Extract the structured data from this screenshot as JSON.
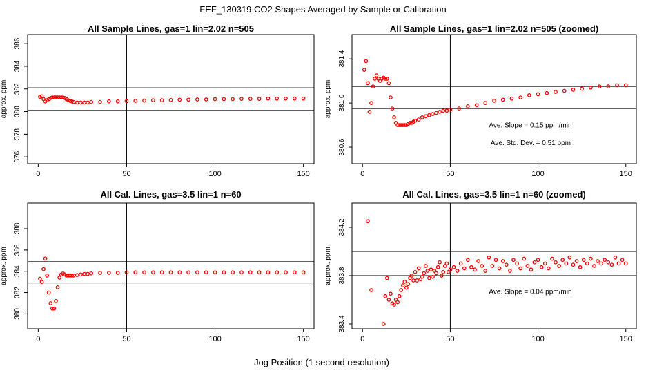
{
  "figure": {
    "title": "FEF_130319  CO2 Shapes Averaged by Sample or Calibration",
    "xlabel": "Jog Position (1 second resolution)"
  },
  "chart_data": [
    {
      "type": "scatter",
      "title": "All Sample Lines, gas=1 lin=2.02 n=505",
      "ylabel": "approx. ppm",
      "xlim": [
        -6,
        156
      ],
      "ylim": [
        375.4,
        386.8
      ],
      "xticks": [
        0,
        50,
        100,
        150
      ],
      "xtick_labels": [
        "0",
        "50",
        "100",
        "150"
      ],
      "yticks": [
        376,
        378,
        380,
        382,
        384,
        386
      ],
      "ytick_labels": [
        "376",
        "378",
        "380",
        "382",
        "384",
        "386"
      ],
      "hlines": [
        380.1,
        382.1
      ],
      "vlines": [
        50
      ],
      "annotations": [],
      "color": "#ff0000",
      "series": [
        {
          "name": "sample",
          "x": [
            1,
            2,
            3,
            4,
            5,
            6,
            7,
            8,
            9,
            10,
            11,
            12,
            13,
            14,
            15,
            16,
            17,
            18,
            19,
            20,
            22,
            24,
            26,
            28,
            30,
            35,
            40,
            45,
            50,
            55,
            60,
            65,
            70,
            75,
            80,
            85,
            90,
            95,
            100,
            105,
            110,
            115,
            120,
            125,
            130,
            135,
            140,
            145,
            150
          ],
          "y": [
            381.3,
            381.35,
            381.1,
            380.9,
            381.0,
            381.1,
            381.2,
            381.25,
            381.25,
            381.25,
            381.25,
            381.25,
            381.25,
            381.25,
            381.2,
            381.1,
            381.0,
            380.95,
            380.9,
            380.85,
            380.8,
            380.8,
            380.8,
            380.8,
            380.85,
            380.85,
            380.9,
            380.9,
            380.92,
            380.95,
            380.97,
            381.0,
            381.0,
            381.02,
            381.05,
            381.05,
            381.07,
            381.07,
            381.1,
            381.1,
            381.1,
            381.12,
            381.12,
            381.12,
            381.15,
            381.15,
            381.15,
            381.15,
            381.15
          ]
        }
      ]
    },
    {
      "type": "scatter",
      "title": "All Sample Lines, gas=1 lin=2.02 n=505 (zoomed)",
      "ylabel": "approx. ppm",
      "xlim": [
        -6,
        156
      ],
      "ylim": [
        380.45,
        381.62
      ],
      "xticks": [
        0,
        50,
        100,
        150
      ],
      "xtick_labels": [
        "0",
        "50",
        "100",
        "150"
      ],
      "yticks": [
        380.6,
        381.0,
        381.4
      ],
      "ytick_labels": [
        "380.6",
        "381.0",
        "381.4"
      ],
      "hlines": [
        380.95,
        381.15
      ],
      "vlines": [
        50
      ],
      "annotations": [
        {
          "text": "Ave. Slope =  0.15  ppm/min",
          "x": 72,
          "y": 380.78
        },
        {
          "text": "Ave. Std. Dev. =  0.51  ppm",
          "x": 73,
          "y": 380.62
        }
      ],
      "color": "#ff0000",
      "series": [
        {
          "name": "sample_zoomed",
          "x": [
            1,
            2,
            3,
            4,
            5,
            6,
            7,
            8,
            9,
            10,
            11,
            12,
            13,
            14,
            15,
            16,
            17,
            18,
            19,
            20,
            21,
            22,
            23,
            24,
            25,
            26,
            27,
            28,
            29,
            30,
            32,
            34,
            36,
            38,
            40,
            42,
            44,
            46,
            48,
            50,
            55,
            60,
            65,
            70,
            75,
            80,
            85,
            90,
            95,
            100,
            105,
            110,
            115,
            120,
            125,
            130,
            135,
            140,
            145,
            150
          ],
          "y": [
            381.3,
            381.38,
            381.18,
            380.92,
            381.0,
            381.15,
            381.22,
            381.25,
            381.22,
            381.2,
            381.22,
            381.23,
            381.22,
            381.22,
            381.18,
            381.05,
            380.95,
            380.87,
            380.82,
            380.8,
            380.8,
            380.8,
            380.8,
            380.8,
            380.8,
            380.81,
            380.82,
            380.82,
            380.83,
            380.84,
            380.85,
            380.87,
            380.88,
            380.89,
            380.9,
            380.91,
            380.92,
            380.93,
            380.93,
            380.94,
            380.95,
            380.97,
            380.98,
            381.0,
            381.02,
            381.03,
            381.04,
            381.05,
            381.07,
            381.08,
            381.09,
            381.1,
            381.11,
            381.12,
            381.13,
            381.14,
            381.15,
            381.15,
            381.16,
            381.16
          ]
        }
      ]
    },
    {
      "type": "scatter",
      "title": "All Cal. Lines, gas=3.5 lin=1 n=60",
      "ylabel": "approx. ppm",
      "xlim": [
        -6,
        156
      ],
      "ylim": [
        378.6,
        390.4
      ],
      "xticks": [
        0,
        50,
        100,
        150
      ],
      "xtick_labels": [
        "0",
        "50",
        "100",
        "150"
      ],
      "yticks": [
        380,
        382,
        384,
        386,
        388
      ],
      "ytick_labels": [
        "380",
        "382",
        "384",
        "386",
        "388"
      ],
      "hlines": [
        382.9,
        384.9
      ],
      "vlines": [
        50
      ],
      "annotations": [],
      "color": "#ff0000",
      "series": [
        {
          "name": "cal",
          "x": [
            1,
            2,
            3,
            4,
            5,
            6,
            7,
            8,
            9,
            10,
            11,
            12,
            13,
            14,
            15,
            16,
            17,
            18,
            19,
            20,
            22,
            24,
            26,
            28,
            30,
            35,
            40,
            45,
            50,
            55,
            60,
            65,
            70,
            75,
            80,
            85,
            90,
            95,
            100,
            105,
            110,
            115,
            120,
            125,
            130,
            135,
            140,
            145,
            150
          ],
          "y": [
            383.3,
            383.0,
            384.2,
            385.2,
            383.6,
            382.0,
            381.0,
            380.5,
            380.5,
            381.2,
            382.5,
            383.4,
            383.7,
            383.8,
            383.7,
            383.6,
            383.6,
            383.6,
            383.6,
            383.6,
            383.65,
            383.7,
            383.75,
            383.75,
            383.8,
            383.85,
            383.85,
            383.85,
            383.9,
            383.9,
            383.9,
            383.9,
            383.9,
            383.9,
            383.9,
            383.9,
            383.9,
            383.9,
            383.9,
            383.9,
            383.9,
            383.9,
            383.9,
            383.9,
            383.9,
            383.9,
            383.9,
            383.9,
            383.9
          ]
        }
      ]
    },
    {
      "type": "scatter",
      "title": "All Cal. Lines, gas=3.5 lin=1 n=60 (zoomed)",
      "ylabel": "approx. ppm",
      "xlim": [
        -6,
        156
      ],
      "ylim": [
        383.36,
        384.4
      ],
      "xticks": [
        0,
        50,
        100,
        150
      ],
      "xtick_labels": [
        "0",
        "50",
        "100",
        "150"
      ],
      "yticks": [
        383.4,
        383.8,
        384.2
      ],
      "ytick_labels": [
        "383.4",
        "383.8",
        "384.2"
      ],
      "hlines": [
        383.8,
        384.0
      ],
      "vlines": [
        50
      ],
      "annotations": [
        {
          "text": "Ave. Slope =  0.04  ppm/min",
          "x": 72,
          "y": 383.65
        }
      ],
      "color": "#ff0000",
      "series": [
        {
          "name": "cal_zoomed",
          "x": [
            3,
            5,
            12,
            13,
            14,
            15,
            16,
            17,
            18,
            19,
            20,
            21,
            22,
            23,
            24,
            25,
            26,
            27,
            28,
            29,
            30,
            31,
            32,
            33,
            34,
            35,
            36,
            37,
            38,
            39,
            40,
            41,
            42,
            43,
            44,
            45,
            46,
            47,
            48,
            49,
            50,
            52,
            54,
            56,
            58,
            60,
            62,
            64,
            66,
            68,
            70,
            72,
            74,
            76,
            78,
            80,
            82,
            84,
            86,
            88,
            90,
            92,
            94,
            96,
            98,
            100,
            102,
            104,
            106,
            108,
            110,
            112,
            114,
            116,
            118,
            120,
            122,
            124,
            126,
            128,
            130,
            132,
            134,
            136,
            138,
            140,
            142,
            144,
            146,
            148,
            150
          ],
          "y": [
            384.25,
            383.68,
            383.4,
            383.63,
            383.78,
            383.6,
            383.65,
            383.57,
            383.56,
            383.6,
            383.58,
            383.63,
            383.68,
            383.72,
            383.75,
            383.7,
            383.73,
            383.78,
            383.8,
            383.76,
            383.83,
            383.76,
            383.86,
            383.77,
            383.79,
            383.82,
            383.88,
            383.84,
            383.78,
            383.85,
            383.79,
            383.84,
            383.82,
            383.87,
            383.91,
            383.8,
            383.83,
            383.88,
            383.9,
            383.83,
            383.85,
            383.87,
            383.84,
            383.9,
            383.86,
            383.93,
            383.87,
            383.85,
            383.92,
            383.88,
            383.84,
            383.95,
            383.88,
            383.93,
            383.86,
            383.92,
            383.89,
            383.84,
            383.93,
            383.9,
            383.86,
            383.94,
            383.88,
            383.85,
            383.91,
            383.93,
            383.87,
            383.9,
            383.86,
            383.94,
            383.91,
            383.88,
            383.93,
            383.9,
            383.95,
            383.89,
            383.92,
            383.87,
            383.93,
            383.9,
            383.94,
            383.88,
            383.92,
            383.9,
            383.93,
            383.91,
            383.89,
            383.95,
            383.9,
            383.93,
            383.9
          ]
        }
      ]
    }
  ]
}
